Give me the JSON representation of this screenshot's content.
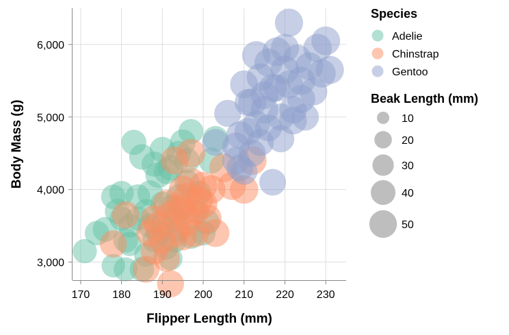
{
  "chart_data": {
    "type": "scatter",
    "xlabel": "Flipper Length (mm)",
    "ylabel": "Body Mass (g)",
    "xlim": [
      168,
      235
    ],
    "ylim": [
      2750,
      6500
    ],
    "x_ticks": [
      170,
      180,
      190,
      200,
      210,
      220,
      230
    ],
    "y_ticks": [
      3000,
      4000,
      5000,
      6000
    ],
    "y_tick_labels": [
      "3,000",
      "4,000",
      "5,000",
      "6,000"
    ],
    "grid": true,
    "colors": {
      "Adelie": "#66c2a5",
      "Chinstrap": "#fc8d62",
      "Gentoo": "#8da0cb"
    },
    "legend": {
      "placement": "right",
      "color_title": "Species",
      "species": [
        "Adelie",
        "Chinstrap",
        "Gentoo"
      ],
      "size_title": "Beak Length (mm)",
      "size_values": [
        10,
        20,
        30,
        40,
        50
      ],
      "size_labels": [
        "10",
        "20",
        "30",
        "40",
        "50"
      ]
    },
    "series": [
      {
        "name": "Adelie",
        "points": [
          [
            171,
            3150,
            37
          ],
          [
            174,
            3400,
            38
          ],
          [
            176,
            3450,
            39
          ],
          [
            178,
            3900,
            38
          ],
          [
            178,
            2950,
            35
          ],
          [
            180,
            3950,
            38
          ],
          [
            180,
            3600,
            36
          ],
          [
            181,
            2900,
            36
          ],
          [
            182,
            3250,
            37
          ],
          [
            183,
            4650,
            40
          ],
          [
            184,
            3900,
            39
          ],
          [
            185,
            2900,
            38
          ],
          [
            185,
            4450,
            41
          ],
          [
            186,
            3100,
            36
          ],
          [
            187,
            3500,
            38
          ],
          [
            188,
            4350,
            40
          ],
          [
            189,
            4200,
            42
          ],
          [
            190,
            4550,
            41
          ],
          [
            190,
            3500,
            37
          ],
          [
            191,
            4250,
            40
          ],
          [
            192,
            3750,
            39
          ],
          [
            192,
            3050,
            36
          ],
          [
            193,
            3300,
            38
          ],
          [
            194,
            3900,
            40
          ],
          [
            195,
            4650,
            42
          ],
          [
            196,
            4400,
            41
          ],
          [
            197,
            4800,
            39
          ],
          [
            198,
            3700,
            37
          ],
          [
            199,
            3950,
            38
          ],
          [
            200,
            3400,
            39
          ],
          [
            201,
            3550,
            40
          ],
          [
            202,
            4400,
            42
          ],
          [
            203,
            4700,
            41
          ],
          [
            184,
            3600,
            36
          ],
          [
            186,
            3700,
            38
          ],
          [
            188,
            3300,
            37
          ],
          [
            190,
            3800,
            39
          ],
          [
            191,
            3200,
            36
          ],
          [
            193,
            3600,
            38
          ],
          [
            194,
            3450,
            40
          ],
          [
            195,
            3750,
            38
          ],
          [
            196,
            4100,
            40
          ],
          [
            197,
            3350,
            37
          ],
          [
            182,
            3500,
            35
          ],
          [
            187,
            3950,
            41
          ],
          [
            189,
            3400,
            39
          ],
          [
            192,
            4300,
            42
          ],
          [
            194,
            4500,
            39
          ],
          [
            181,
            3300,
            39
          ],
          [
            179,
            3700,
            40
          ]
        ]
      },
      {
        "name": "Chinstrap",
        "points": [
          [
            178,
            3250,
            46
          ],
          [
            181,
            3650,
            47
          ],
          [
            186,
            2900,
            45
          ],
          [
            187,
            3400,
            48
          ],
          [
            188,
            3600,
            46
          ],
          [
            189,
            3500,
            50
          ],
          [
            190,
            3300,
            47
          ],
          [
            191,
            3800,
            49
          ],
          [
            192,
            2700,
            46
          ],
          [
            192,
            3650,
            48
          ],
          [
            193,
            3400,
            50
          ],
          [
            194,
            3750,
            51
          ],
          [
            195,
            4000,
            49
          ],
          [
            196,
            3550,
            50
          ],
          [
            197,
            4100,
            52
          ],
          [
            198,
            3700,
            51
          ],
          [
            199,
            3850,
            49
          ],
          [
            200,
            4050,
            50
          ],
          [
            201,
            3600,
            52
          ],
          [
            202,
            4000,
            51
          ],
          [
            203,
            3400,
            49
          ],
          [
            205,
            4300,
            52
          ],
          [
            207,
            4050,
            50
          ],
          [
            210,
            4000,
            51
          ],
          [
            212,
            4400,
            52
          ],
          [
            195,
            3350,
            47
          ],
          [
            193,
            4400,
            50
          ],
          [
            197,
            4500,
            52
          ],
          [
            188,
            3150,
            46
          ],
          [
            195,
            3700,
            49
          ],
          [
            198,
            3400,
            50
          ],
          [
            191,
            3050,
            45
          ],
          [
            200,
            3800,
            51
          ],
          [
            196,
            3900,
            48
          ]
        ]
      },
      {
        "name": "Gentoo",
        "points": [
          [
            203,
            4650,
            45
          ],
          [
            206,
            5050,
            46
          ],
          [
            208,
            4400,
            47
          ],
          [
            209,
            4750,
            48
          ],
          [
            210,
            5450,
            49
          ],
          [
            211,
            4800,
            47
          ],
          [
            212,
            5200,
            50
          ],
          [
            213,
            5850,
            51
          ],
          [
            214,
            4650,
            46
          ],
          [
            215,
            5300,
            48
          ],
          [
            216,
            5750,
            50
          ],
          [
            217,
            4100,
            45
          ],
          [
            217,
            5400,
            49
          ],
          [
            218,
            5900,
            52
          ],
          [
            219,
            5000,
            47
          ],
          [
            220,
            5650,
            51
          ],
          [
            221,
            6300,
            50
          ],
          [
            222,
            5100,
            48
          ],
          [
            223,
            5800,
            52
          ],
          [
            224,
            5500,
            50
          ],
          [
            225,
            5000,
            46
          ],
          [
            226,
            5700,
            49
          ],
          [
            227,
            5350,
            48
          ],
          [
            228,
            5950,
            51
          ],
          [
            229,
            5600,
            50
          ],
          [
            230,
            6050,
            52
          ],
          [
            231,
            5650,
            50
          ],
          [
            211,
            5200,
            46
          ],
          [
            213,
            4900,
            47
          ],
          [
            215,
            5100,
            48
          ],
          [
            216,
            4850,
            45
          ],
          [
            218,
            5400,
            47
          ],
          [
            219,
            4700,
            46
          ],
          [
            221,
            5450,
            49
          ],
          [
            222,
            4950,
            48
          ],
          [
            224,
            5250,
            49
          ],
          [
            214,
            5550,
            48
          ],
          [
            208,
            4600,
            46
          ],
          [
            220,
            5950,
            50
          ],
          [
            212,
            4500,
            46
          ],
          [
            209,
            4300,
            45
          ],
          [
            210,
            4250,
            45
          ]
        ]
      }
    ]
  }
}
